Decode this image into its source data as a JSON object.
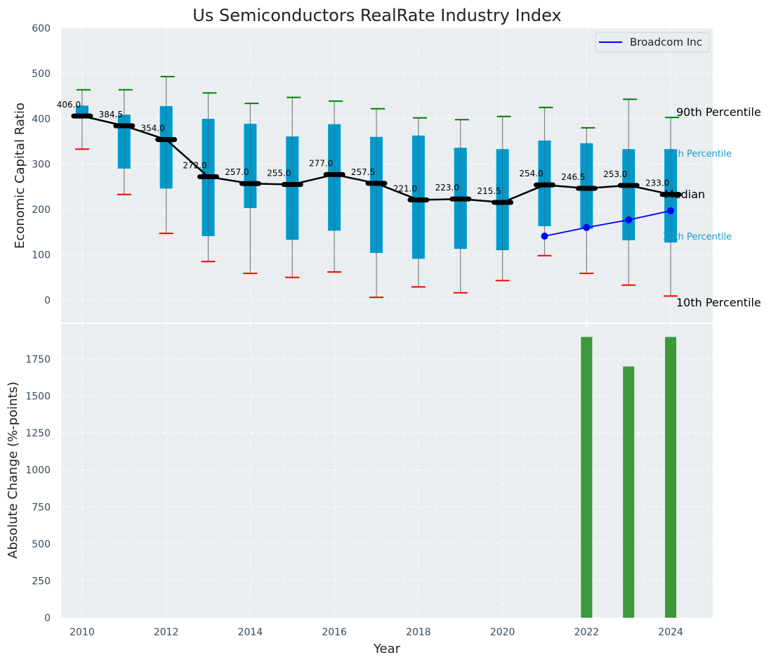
{
  "chart_data": [
    {
      "type": "box",
      "title": "Us Semiconductors RealRate Industry Index",
      "xlabel": "",
      "ylabel": "Economic Capital Ratio",
      "ylim": [
        -50,
        600
      ],
      "yticks": [
        0,
        100,
        200,
        300,
        400,
        500,
        600
      ],
      "grid": true,
      "categories": [
        2010,
        2011,
        2012,
        2013,
        2014,
        2015,
        2016,
        2017,
        2018,
        2019,
        2020,
        2021,
        2022,
        2023,
        2024
      ],
      "p90": [
        464,
        464,
        493,
        457,
        434,
        447,
        439,
        422,
        402,
        398,
        405,
        425,
        380,
        443,
        403
      ],
      "p75": [
        429,
        409,
        428,
        400,
        389,
        361,
        388,
        360,
        363,
        336,
        333,
        352,
        346,
        333,
        333
      ],
      "median": [
        406.0,
        384.5,
        354.0,
        272.0,
        257.0,
        255.0,
        277.0,
        257.5,
        221.0,
        223.0,
        215.5,
        254.0,
        246.5,
        253.0,
        233.0
      ],
      "p25": [
        406,
        290,
        246,
        141,
        203,
        133,
        153,
        104,
        91,
        113,
        110,
        163,
        157,
        132,
        127
      ],
      "p10": [
        333,
        233,
        147,
        85,
        59,
        50,
        62,
        6,
        29,
        16,
        43,
        98,
        59,
        33,
        9
      ],
      "median_labels": [
        "406.0",
        "384.5",
        "354.0",
        "272.0",
        "257.0",
        "255.0",
        "277.0",
        "257.5",
        "221.0",
        "223.0",
        "215.5",
        "254.0",
        "246.5",
        "253.0",
        "233.0"
      ],
      "series": [
        {
          "name": "Broadcom Inc",
          "x": [
            2021,
            2022,
            2023,
            2024
          ],
          "values": [
            141,
            160,
            177,
            197
          ],
          "color": "#0000ff"
        }
      ],
      "legend": {
        "position": "top-right",
        "entries": [
          "Broadcom Inc"
        ]
      },
      "annotations": {
        "p90": "90th Percentile",
        "p75": "75th Percentile",
        "median": "Median",
        "p25": "25th Percentile",
        "p10": "10th Percentile"
      },
      "colors": {
        "box": "#0099cc",
        "median": "#000000",
        "p90_cap": "#008000",
        "p10_cap": "#ff0000",
        "whisker": "#808080"
      }
    },
    {
      "type": "bar",
      "title": "",
      "xlabel": "Year",
      "ylabel": "Absolute Change (%-points)",
      "ylim": [
        0,
        1990
      ],
      "yticks": [
        0,
        250,
        500,
        750,
        1000,
        1250,
        1500,
        1750
      ],
      "xticks": [
        2010,
        2012,
        2014,
        2016,
        2018,
        2020,
        2022,
        2024
      ],
      "xlim": [
        2009.5,
        2025
      ],
      "grid": true,
      "categories": [
        2022,
        2023,
        2024
      ],
      "values": [
        1900,
        1700,
        1900
      ],
      "color": "#3a9a3a"
    }
  ]
}
